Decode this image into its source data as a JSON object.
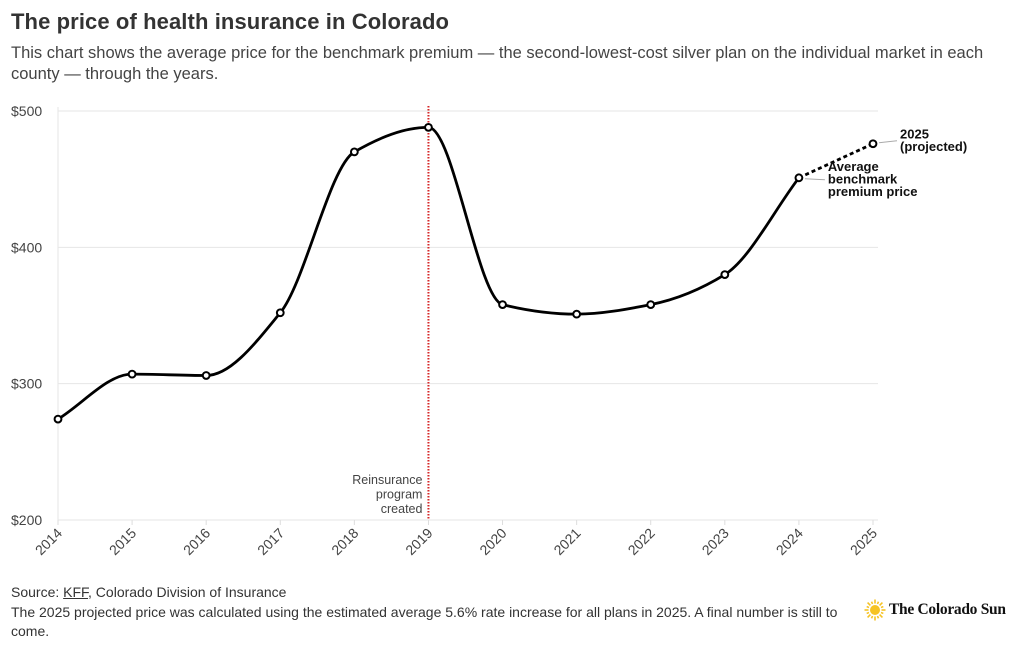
{
  "header": {
    "title": "The price of health insurance in Colorado",
    "subtitle": "This chart shows the average price for the benchmark premium — the second-lowest-cost silver plan on the individual market in each county — through the years."
  },
  "chart_data": {
    "type": "line",
    "title": "The price of health insurance in Colorado",
    "xlabel": "",
    "ylabel": "",
    "x": [
      "2014",
      "2015",
      "2016",
      "2017",
      "2018",
      "2019",
      "2020",
      "2021",
      "2022",
      "2023",
      "2024",
      "2025"
    ],
    "series": [
      {
        "name": "Average benchmark premium price",
        "values": [
          274,
          307,
          306,
          352,
          470,
          488,
          358,
          351,
          358,
          380,
          451,
          476
        ],
        "projected_from_index": 10
      }
    ],
    "ylim": [
      200,
      500
    ],
    "yticks": [
      200,
      300,
      400,
      500
    ],
    "ytick_labels": [
      "$200",
      "$300",
      "$400",
      "$500"
    ],
    "grid": "horizontal",
    "annotations": [
      {
        "x": "2019",
        "type": "vertical-line",
        "color": "#d62728",
        "text": [
          "Reinsurance",
          "program",
          "created"
        ]
      },
      {
        "x": "2024",
        "type": "label",
        "text": [
          "Average",
          "benchmark",
          "premium price"
        ]
      },
      {
        "x": "2025",
        "type": "label",
        "text": [
          "2025",
          "(projected)"
        ]
      }
    ],
    "colors": {
      "line": "#000000",
      "grid": "#e6e6e6",
      "reference": "#d62728"
    }
  },
  "footer": {
    "source_prefix": "Source: ",
    "source_link": "KFF",
    "source_rest": ", Colorado Division of Insurance",
    "note": "The 2025 projected price was calculated using the estimated average 5.6% rate increase for all plans in 2025. A final number is still to come."
  },
  "logo": {
    "icon": "sun-icon",
    "text": "The Colorado Sun",
    "color": "#f6c324"
  }
}
